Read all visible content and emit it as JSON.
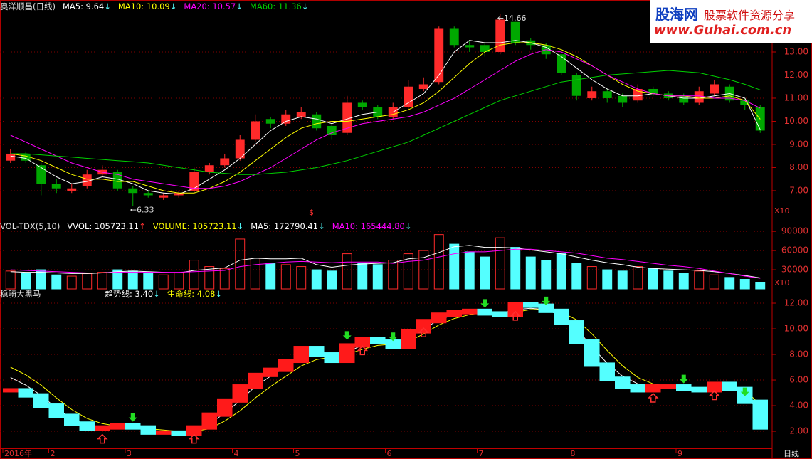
{
  "chart_data": [
    {
      "type": "candlestick",
      "title": "奥洋顺昌(日线)",
      "open": [
        8.3,
        8.6,
        8.1,
        7.3,
        7.0,
        7.2,
        7.7,
        7.8,
        7.1,
        6.9,
        6.7,
        6.8,
        7.0,
        7.8,
        8.1,
        8.4,
        9.2,
        10.1,
        9.9,
        10.2,
        10.3,
        9.8,
        9.5,
        10.8,
        10.6,
        10.2,
        10.6,
        11.4,
        11.7,
        14.0,
        13.3,
        13.3,
        13.0,
        14.3,
        13.5,
        13.3,
        12.9,
        12.0,
        11.0,
        11.3,
        11.1,
        10.9,
        11.4,
        11.2,
        11.1,
        10.8,
        11.2,
        11.5,
        10.9,
        10.6
      ],
      "high": [
        8.8,
        8.7,
        8.2,
        7.5,
        7.3,
        7.9,
        8.1,
        7.9,
        7.2,
        7.0,
        6.9,
        7.0,
        8.0,
        8.2,
        8.6,
        9.4,
        10.3,
        10.2,
        10.5,
        10.6,
        10.4,
        9.9,
        11.1,
        10.9,
        10.7,
        10.8,
        11.8,
        11.9,
        14.1,
        14.1,
        13.5,
        13.4,
        14.66,
        14.3,
        13.6,
        13.4,
        12.9,
        12.1,
        11.5,
        11.4,
        11.2,
        11.6,
        11.5,
        11.3,
        11.2,
        11.5,
        11.8,
        11.6,
        11.0,
        10.7
      ],
      "low": [
        8.2,
        8.2,
        6.8,
        6.9,
        6.9,
        7.1,
        7.6,
        7.0,
        6.33,
        6.7,
        6.6,
        6.7,
        6.9,
        7.7,
        8.0,
        8.3,
        9.1,
        9.7,
        9.8,
        10.1,
        9.6,
        9.2,
        9.4,
        10.5,
        10.1,
        10.1,
        10.5,
        11.3,
        11.6,
        13.2,
        13.0,
        12.8,
        12.9,
        13.3,
        13.1,
        12.7,
        12.0,
        10.9,
        10.9,
        10.8,
        10.6,
        10.8,
        11.1,
        10.9,
        10.7,
        10.7,
        11.1,
        10.8,
        10.5,
        9.5
      ],
      "close": [
        8.6,
        8.3,
        7.3,
        7.1,
        7.1,
        7.7,
        7.9,
        7.1,
        6.9,
        6.8,
        6.8,
        6.9,
        7.8,
        8.1,
        8.4,
        9.2,
        10.0,
        9.9,
        10.3,
        10.4,
        9.7,
        9.4,
        10.8,
        10.6,
        10.2,
        10.6,
        11.5,
        11.6,
        14.0,
        13.3,
        13.2,
        13.0,
        14.4,
        13.4,
        13.3,
        12.9,
        12.1,
        11.1,
        11.3,
        11.0,
        10.8,
        11.4,
        11.2,
        11.0,
        10.8,
        11.3,
        11.6,
        10.9,
        10.7,
        9.6
      ],
      "up_color": "#ff2a2a",
      "down_color": "#00a800",
      "series": [
        {
          "name": "MA5: 9.64",
          "trend": "↓",
          "color": "#ffffff",
          "values": [
            8.5,
            8.4,
            8.0,
            7.6,
            7.3,
            7.4,
            7.6,
            7.5,
            7.3,
            7.0,
            6.9,
            6.85,
            7.1,
            7.5,
            7.9,
            8.4,
            9.0,
            9.6,
            10.0,
            10.2,
            10.1,
            9.9,
            10.1,
            10.3,
            10.4,
            10.4,
            10.8,
            11.2,
            12.0,
            13.0,
            13.5,
            13.4,
            13.4,
            13.5,
            13.4,
            13.2,
            12.8,
            12.3,
            11.8,
            11.4,
            11.1,
            11.1,
            11.2,
            11.1,
            11.0,
            11.0,
            11.1,
            11.2,
            11.0,
            9.64
          ]
        },
        {
          "name": "MA10: 10.09",
          "trend": "↓",
          "color": "#ffff00",
          "values": [
            8.6,
            8.5,
            8.3,
            8.0,
            7.7,
            7.5,
            7.5,
            7.4,
            7.4,
            7.2,
            7.0,
            6.9,
            6.9,
            7.1,
            7.4,
            7.8,
            8.3,
            8.8,
            9.3,
            9.7,
            9.9,
            10.0,
            10.0,
            10.1,
            10.2,
            10.3,
            10.5,
            10.8,
            11.3,
            11.9,
            12.5,
            13.0,
            13.3,
            13.4,
            13.4,
            13.3,
            13.1,
            12.8,
            12.4,
            12.0,
            11.6,
            11.3,
            11.2,
            11.1,
            11.1,
            11.0,
            11.0,
            11.1,
            10.9,
            10.09
          ]
        },
        {
          "name": "MA20: 10.57",
          "trend": "↓",
          "color": "#ff00ff",
          "values": [
            9.4,
            9.1,
            8.8,
            8.5,
            8.2,
            8.0,
            7.8,
            7.7,
            7.5,
            7.4,
            7.3,
            7.2,
            7.1,
            7.1,
            7.2,
            7.4,
            7.7,
            8.0,
            8.4,
            8.8,
            9.2,
            9.5,
            9.7,
            9.9,
            10.0,
            10.1,
            10.2,
            10.4,
            10.7,
            11.0,
            11.4,
            11.8,
            12.2,
            12.6,
            12.9,
            13.1,
            13.0,
            12.7,
            12.4,
            12.0,
            11.7,
            11.4,
            11.2,
            11.1,
            11.1,
            11.1,
            11.0,
            11.0,
            10.9,
            10.57
          ]
        },
        {
          "name": "MA60: 11.36",
          "trend": "↓",
          "color": "#00d000",
          "values": [
            8.6,
            8.6,
            8.55,
            8.5,
            8.45,
            8.4,
            8.35,
            8.3,
            8.25,
            8.2,
            8.1,
            8.0,
            7.9,
            7.8,
            7.75,
            7.7,
            7.7,
            7.75,
            7.8,
            7.9,
            8.0,
            8.15,
            8.3,
            8.5,
            8.7,
            8.9,
            9.1,
            9.4,
            9.7,
            10.0,
            10.3,
            10.6,
            10.9,
            11.1,
            11.3,
            11.5,
            11.7,
            11.8,
            11.9,
            12.0,
            12.05,
            12.1,
            12.15,
            12.2,
            12.15,
            12.1,
            11.95,
            11.8,
            11.6,
            11.36
          ]
        }
      ],
      "ylim": [
        5.86,
        15.0
      ],
      "yticks": [
        {
          "value": 7,
          "label": "7.00"
        },
        {
          "value": 8,
          "label": "8.00"
        },
        {
          "value": 9,
          "label": "9.00"
        },
        {
          "value": 10,
          "label": "10.00"
        },
        {
          "value": 11,
          "label": "11.00"
        },
        {
          "value": 12,
          "label": "12.00"
        },
        {
          "value": 13,
          "label": "13.00"
        }
      ],
      "grid": true,
      "low_note": {
        "value": 6.33,
        "label": "←6.33"
      },
      "high_note": {
        "value": 14.66,
        "label": "←14.66"
      },
      "marker": "$",
      "scale_note": "X10",
      "watermark": {
        "site": "股海网",
        "slogan": "股票软件资源分享",
        "url": "www.Guhai.com.cn"
      }
    },
    {
      "type": "bar",
      "title": "VOL-TDX(5,10)",
      "extra_legend": [
        {
          "label": "VVOL: 105723.11",
          "trend": "↑",
          "color": "#ffffff"
        }
      ],
      "name": "VOLUME: 105723.11",
      "name_trend": "↓",
      "name_color": "#ffff00",
      "values": [
        28000,
        25000,
        30000,
        22000,
        20000,
        24000,
        26000,
        30000,
        28000,
        24000,
        22000,
        25000,
        45000,
        35000,
        32000,
        78000,
        48000,
        40000,
        38000,
        35000,
        30000,
        28000,
        55000,
        40000,
        38000,
        45000,
        55000,
        60000,
        85000,
        70000,
        58000,
        50000,
        80000,
        65000,
        50000,
        45000,
        55000,
        40000,
        35000,
        30000,
        28000,
        35000,
        32000,
        28000,
        25000,
        28000,
        22000,
        18000,
        15000,
        10572
      ],
      "up_color": "#ff2a2a",
      "down_color": "#54ffff",
      "series": [
        {
          "name": "MA5: 172790.41",
          "trend": "↓",
          "color": "#ffffff",
          "values": [
            27000,
            26000,
            26000,
            25000,
            24000,
            24000,
            25000,
            27000,
            28000,
            27000,
            26000,
            25000,
            29000,
            31000,
            33000,
            45000,
            48000,
            47000,
            47000,
            48000,
            38000,
            34000,
            37000,
            39000,
            40000,
            41000,
            47000,
            49000,
            57000,
            66000,
            68000,
            65000,
            65000,
            64000,
            61000,
            58000,
            55000,
            50000,
            45000,
            41000,
            38000,
            34000,
            32000,
            31000,
            30000,
            29000,
            27000,
            24000,
            21000,
            17279
          ]
        },
        {
          "name": "MA10: 165444.80",
          "trend": "↓",
          "color": "#ff00ff",
          "values": [
            30000,
            29000,
            28000,
            27000,
            26000,
            25000,
            25000,
            26000,
            26000,
            26000,
            26000,
            26000,
            27000,
            28000,
            29000,
            35000,
            38000,
            40000,
            42000,
            43000,
            42000,
            41000,
            42000,
            42000,
            42000,
            40000,
            43000,
            45000,
            50000,
            55000,
            58000,
            58000,
            60000,
            62000,
            62000,
            60000,
            58000,
            56000,
            52000,
            48000,
            46000,
            43000,
            40000,
            37000,
            35000,
            32000,
            28000,
            24000,
            20000,
            16544
          ]
        }
      ],
      "ylim": [
        0,
        108000
      ],
      "yticks": [
        30000,
        60000,
        90000
      ],
      "scale_note": "X10"
    },
    {
      "type": "line",
      "title": "稳骑大黑马",
      "categories": [
        "2016年",
        null,
        null,
        "2",
        null,
        null,
        null,
        null,
        "3",
        null,
        null,
        null,
        null,
        null,
        null,
        "4",
        null,
        null,
        null,
        "5",
        null,
        null,
        null,
        null,
        null,
        "6",
        null,
        null,
        null,
        null,
        null,
        "7",
        null,
        null,
        null,
        null,
        null,
        "8",
        null,
        null,
        null,
        null,
        null,
        null,
        "9",
        null,
        null,
        null,
        null,
        null
      ],
      "values": [
        5.2,
        4.8,
        4.0,
        3.2,
        2.6,
        2.2,
        2.3,
        2.5,
        2.3,
        1.9,
        1.9,
        1.8,
        2.3,
        3.3,
        4.4,
        5.5,
        6.4,
        6.8,
        7.5,
        8.5,
        8.0,
        7.5,
        8.7,
        9.2,
        9.0,
        8.6,
        9.8,
        10.6,
        11.1,
        11.3,
        11.4,
        11.2,
        11.1,
        11.9,
        11.8,
        11.4,
        10.5,
        9.0,
        7.2,
        6.1,
        5.5,
        5.2,
        5.5,
        5.5,
        5.3,
        5.2,
        5.7,
        5.3,
        4.3,
        2.3
      ],
      "rise_color": "#ff1a1a",
      "fall_color": "#54ffff",
      "series": [
        {
          "name": "趋势线: 3.40",
          "trend": "↓",
          "color": "#ffffff",
          "values": [
            6.2,
            5.6,
            4.8,
            3.8,
            3.0,
            2.5,
            2.3,
            2.3,
            2.3,
            2.1,
            2.0,
            1.9,
            2.0,
            2.6,
            3.4,
            4.4,
            5.5,
            6.3,
            7.0,
            7.8,
            8.1,
            7.9,
            8.2,
            8.7,
            8.9,
            8.8,
            9.3,
            10.0,
            10.7,
            11.1,
            11.3,
            11.2,
            11.2,
            11.5,
            11.6,
            11.5,
            11.0,
            10.0,
            8.6,
            7.3,
            6.3,
            5.7,
            5.5,
            5.4,
            5.4,
            5.3,
            5.4,
            5.4,
            4.9,
            3.4
          ]
        },
        {
          "name": "生命线: 4.08",
          "trend": "↓",
          "color": "#ffff00",
          "values": [
            7.0,
            6.4,
            5.6,
            4.6,
            3.7,
            3.0,
            2.6,
            2.4,
            2.3,
            2.2,
            2.1,
            2.0,
            2.0,
            2.2,
            2.8,
            3.6,
            4.6,
            5.5,
            6.3,
            7.1,
            7.6,
            7.8,
            8.0,
            8.4,
            8.7,
            8.8,
            9.0,
            9.6,
            10.3,
            10.8,
            11.1,
            11.3,
            11.2,
            11.3,
            11.5,
            11.5,
            11.3,
            10.7,
            9.6,
            8.3,
            7.1,
            6.2,
            5.7,
            5.5,
            5.4,
            5.4,
            5.4,
            5.4,
            5.2,
            4.08
          ]
        }
      ],
      "buy_signals": [
        6,
        12,
        23,
        27,
        33,
        42,
        46
      ],
      "buy_color": "#ff3030",
      "sell_signals": [
        8,
        22,
        25,
        31,
        35,
        44,
        48
      ],
      "sell_color": "#22dd22",
      "ylim": [
        0.67,
        12.89
      ],
      "yticks": [
        {
          "value": 2,
          "label": "2.00"
        },
        {
          "value": 4,
          "label": "4.00"
        },
        {
          "value": 6,
          "label": "6.00"
        },
        {
          "value": 8,
          "label": "8.00"
        },
        {
          "value": 10,
          "label": "10.00"
        },
        {
          "value": 12,
          "label": "12.00"
        }
      ],
      "period": "日线"
    }
  ]
}
